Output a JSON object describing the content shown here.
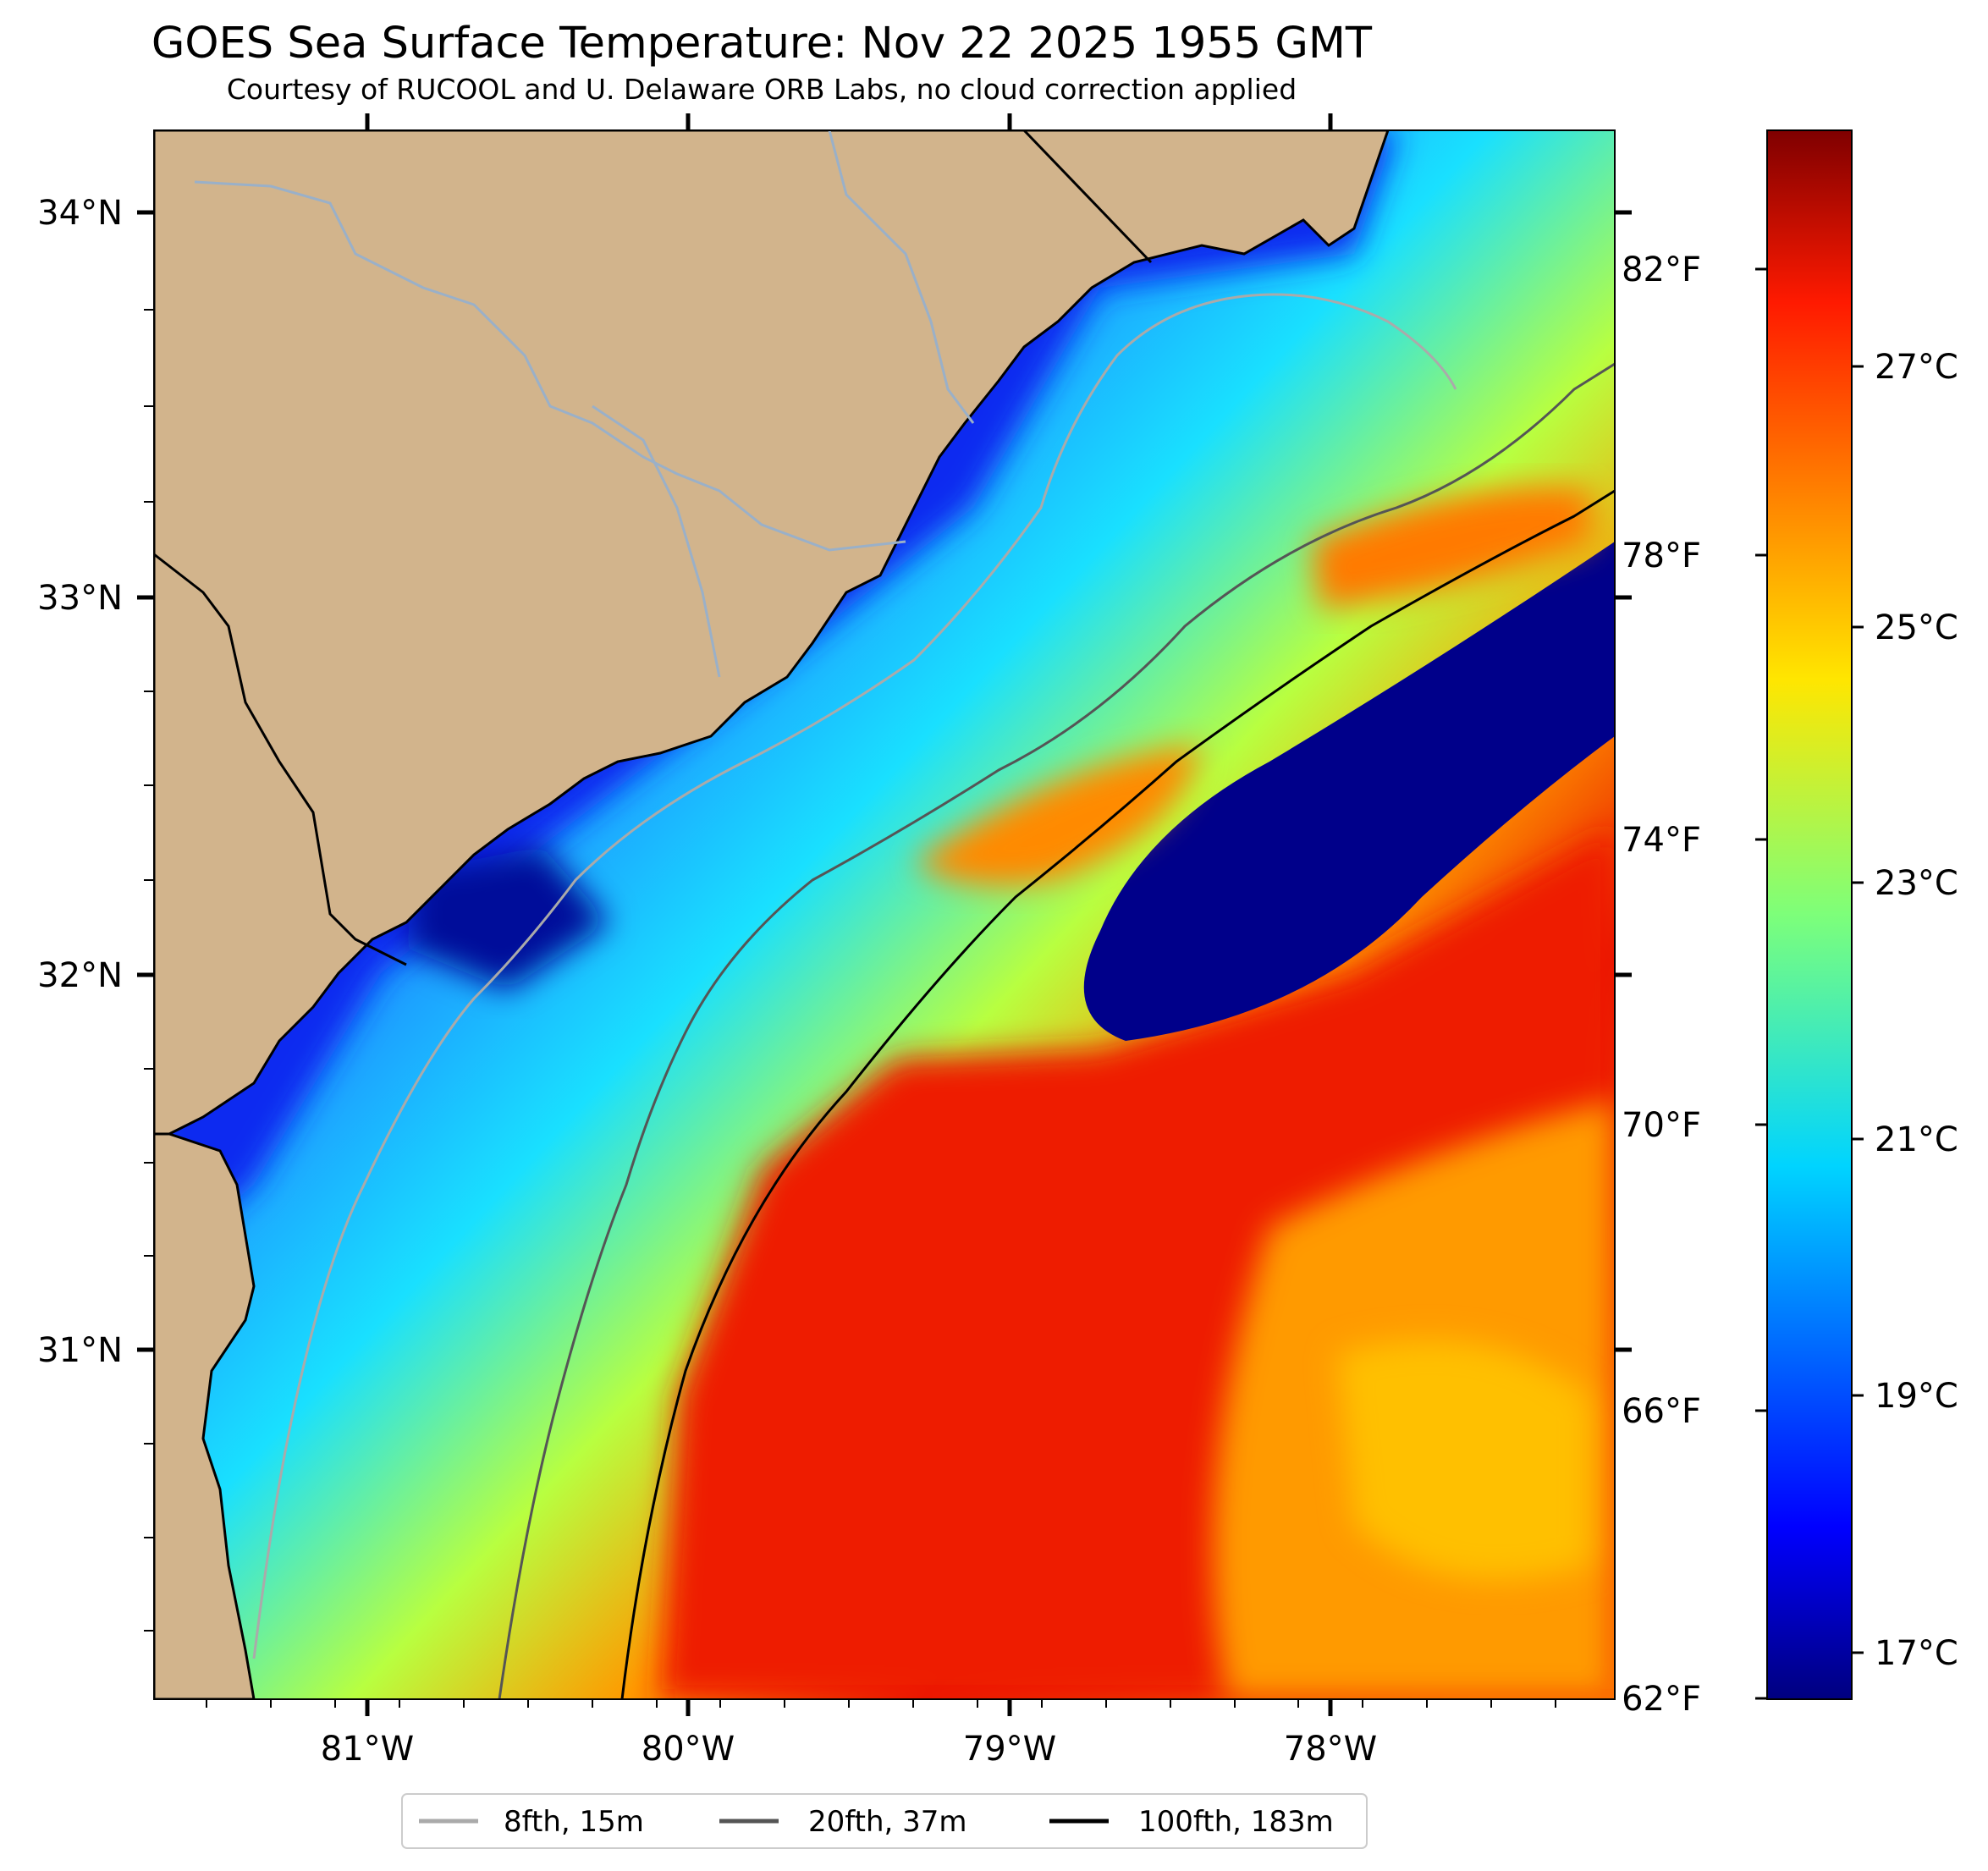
{
  "title": "GOES Sea Surface Temperature: Nov 22 2025 1955 GMT",
  "subtitle": "Courtesy of RUCOOL and U. Delaware ORB Labs, no cloud correction applied",
  "map": {
    "lat_ticks": [
      "34°N",
      "33°N",
      "32°N",
      "31°N"
    ],
    "lon_ticks": [
      "81°W",
      "80°W",
      "79°W",
      "78°W"
    ],
    "land_color": "#d2b48c",
    "coast_color": "#000000",
    "river_color": "#9ab0c8"
  },
  "colorbar": {
    "colormap": "jet",
    "fahrenheit_ticks": [
      "82°F",
      "78°F",
      "74°F",
      "70°F",
      "66°F",
      "62°F"
    ],
    "celsius_ticks": [
      "27°C",
      "25°C",
      "23°C",
      "21°C",
      "19°C",
      "17°C"
    ]
  },
  "legend": {
    "items": [
      {
        "label": "8fth, 15m",
        "color": "#aaaaaa"
      },
      {
        "label": "20fth, 37m",
        "color": "#555555"
      },
      {
        "label": "100fth, 183m",
        "color": "#000000"
      }
    ]
  }
}
